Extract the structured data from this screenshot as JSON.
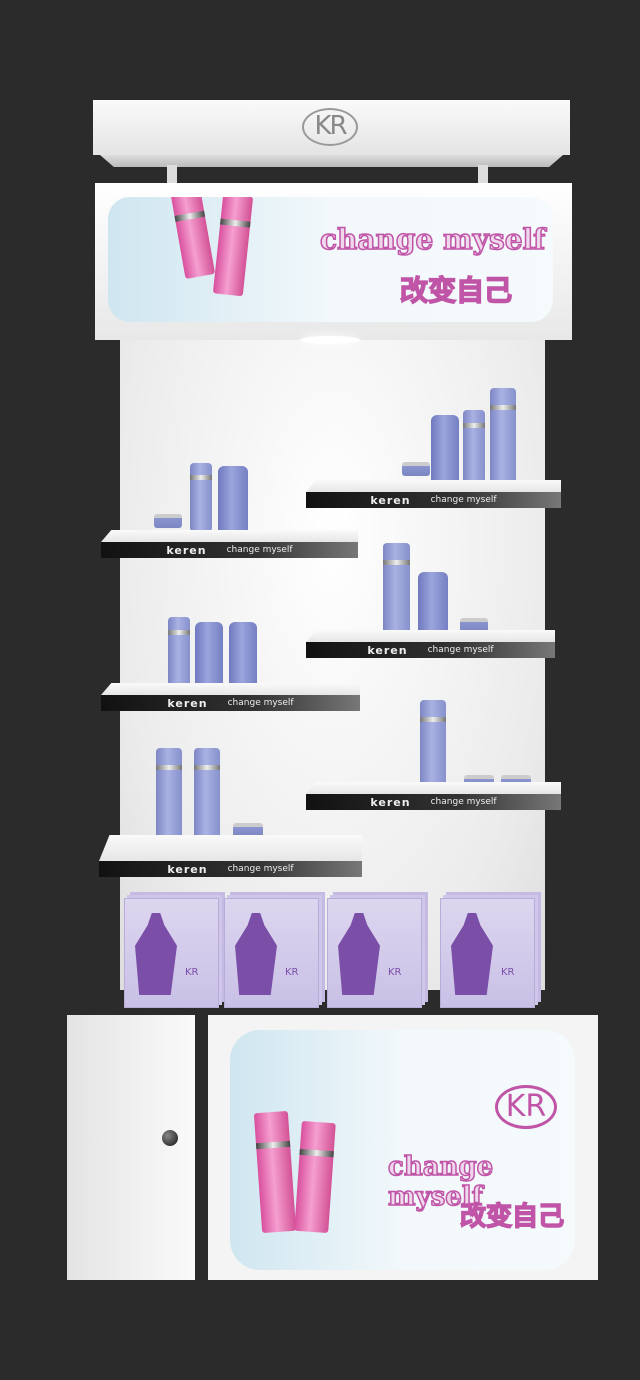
{
  "brand": {
    "logo": "KR",
    "slogan_en": "change myself",
    "slogan_cn": "改变自己"
  },
  "shelf_label": {
    "brand": "keren",
    "tagline": "change myself"
  },
  "colors": {
    "background": "#2b2b2b",
    "accent_pink": "#c055a8",
    "product_lavender": "#8a94cf",
    "mask_box": "#d8d0ee"
  }
}
